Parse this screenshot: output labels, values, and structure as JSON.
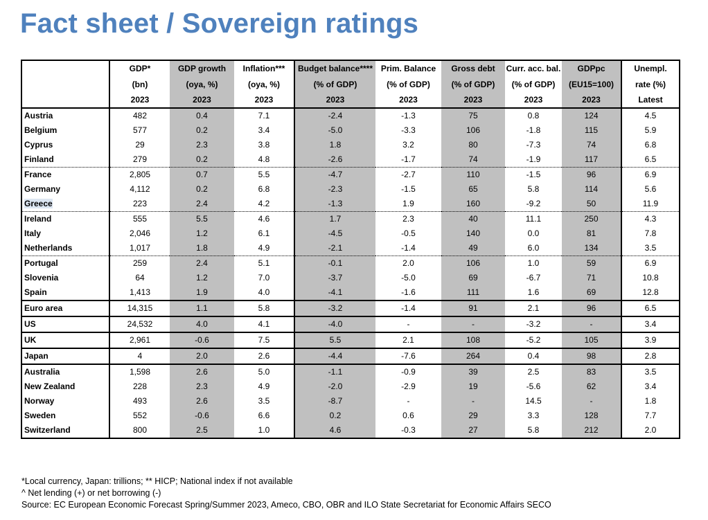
{
  "title": "Fact sheet / Sovereign ratings",
  "header": {
    "row1": [
      "GDP*",
      "GDP growth",
      "Inflation***",
      "Budget balance****",
      "Prim. Balance",
      "Gross debt",
      "Curr. acc. bal.",
      "GDPpc",
      "Unempl."
    ],
    "row2": [
      "(bn)",
      "(oya, %)",
      "(oya, %)",
      "(% of GDP)",
      "(% of GDP)",
      "(% of GDP)",
      "(% of GDP)",
      "(EU15=100)",
      "rate (%)"
    ],
    "row3": [
      "2023",
      "2023",
      "2023",
      "2023",
      "2023",
      "2023",
      "2023",
      "2023",
      "Latest"
    ]
  },
  "rows": [
    {
      "name": "Austria",
      "values": [
        "482",
        "0.4",
        "7.1",
        "-2.4",
        "-1.3",
        "75",
        "0.8",
        "124",
        "4.5"
      ]
    },
    {
      "name": "Belgium",
      "values": [
        "577",
        "0.2",
        "3.4",
        "-5.0",
        "-3.3",
        "106",
        "-1.8",
        "115",
        "5.9"
      ]
    },
    {
      "name": "Cyprus",
      "values": [
        "29",
        "2.3",
        "3.8",
        "1.8",
        "3.2",
        "80",
        "-7.3",
        "74",
        "6.8"
      ]
    },
    {
      "name": "Finland",
      "values": [
        "279",
        "0.2",
        "4.8",
        "-2.6",
        "-1.7",
        "74",
        "-1.9",
        "117",
        "6.5"
      ]
    },
    {
      "name": "France",
      "values": [
        "2,805",
        "0.7",
        "5.5",
        "-4.7",
        "-2.7",
        "110",
        "-1.5",
        "96",
        "6.9"
      ]
    },
    {
      "name": "Germany",
      "values": [
        "4,112",
        "0.2",
        "6.8",
        "-2.3",
        "-1.5",
        "65",
        "5.8",
        "114",
        "5.6"
      ]
    },
    {
      "name": "Greece",
      "values": [
        "223",
        "2.4",
        "4.2",
        "-1.3",
        "1.9",
        "160",
        "-9.2",
        "50",
        "11.9"
      ]
    },
    {
      "name": "Ireland",
      "values": [
        "555",
        "5.5",
        "4.6",
        "1.7",
        "2.3",
        "40",
        "11.1",
        "250",
        "4.3"
      ]
    },
    {
      "name": "Italy",
      "values": [
        "2,046",
        "1.2",
        "6.1",
        "-4.5",
        "-0.5",
        "140",
        "0.0",
        "81",
        "7.8"
      ]
    },
    {
      "name": "Netherlands",
      "values": [
        "1,017",
        "1.8",
        "4.9",
        "-2.1",
        "-1.4",
        "49",
        "6.0",
        "134",
        "3.5"
      ]
    },
    {
      "name": "Portugal",
      "values": [
        "259",
        "2.4",
        "5.1",
        "-0.1",
        "2.0",
        "106",
        "1.0",
        "59",
        "6.9"
      ]
    },
    {
      "name": "Slovenia",
      "values": [
        "64",
        "1.2",
        "7.0",
        "-3.7",
        "-5.0",
        "69",
        "-6.7",
        "71",
        "10.8"
      ]
    },
    {
      "name": "Spain",
      "values": [
        "1,413",
        "1.9",
        "4.0",
        "-4.1",
        "-1.6",
        "111",
        "1.6",
        "69",
        "12.8"
      ]
    },
    {
      "name": "Euro area",
      "values": [
        "14,315",
        "1.1",
        "5.8",
        "-3.2",
        "-1.4",
        "91",
        "2.1",
        "96",
        "6.5"
      ]
    },
    {
      "name": "US",
      "values": [
        "24,532",
        "4.0",
        "4.1",
        "-4.0",
        "-",
        "-",
        "-3.2",
        "-",
        "3.4"
      ]
    },
    {
      "name": "UK",
      "values": [
        "2,961",
        "-0.6",
        "7.5",
        "5.5",
        "2.1",
        "108",
        "-5.2",
        "105",
        "3.9"
      ]
    },
    {
      "name": "Japan",
      "values": [
        "4",
        "2.0",
        "2.6",
        "-4.4",
        "-7.6",
        "264",
        "0.4",
        "98",
        "2.8"
      ]
    },
    {
      "name": "Australia",
      "values": [
        "1,598",
        "2.6",
        "5.0",
        "-1.1",
        "-0.9",
        "39",
        "2.5",
        "83",
        "3.5"
      ]
    },
    {
      "name": "New Zealand",
      "values": [
        "228",
        "2.3",
        "4.9",
        "-2.0",
        "-2.9",
        "19",
        "-5.6",
        "62",
        "3.4"
      ]
    },
    {
      "name": "Norway",
      "values": [
        "493",
        "2.6",
        "3.5",
        "-8.7",
        "-",
        "-",
        "14.5",
        "-",
        "1.8"
      ]
    },
    {
      "name": "Sweden",
      "values": [
        "552",
        "-0.6",
        "6.6",
        "0.2",
        "0.6",
        "29",
        "3.3",
        "128",
        "7.7"
      ]
    },
    {
      "name": "Switzerland",
      "values": [
        "800",
        "2.5",
        "1.0",
        "4.6",
        "-0.3",
        "27",
        "5.8",
        "212",
        "2.0"
      ]
    }
  ],
  "notes": [
    "*Local currency, Japan: trillions; ** HICP; National index if not available",
    "^ Net lending (+) or net borrowing (-)",
    "Source: EC European Economic Forecast Spring/Summer 2023, Ameco, CBO, OBR and ILO State Secretariat for Economic Affairs SECO"
  ],
  "colors": {
    "title": "#4f81bd",
    "shaded_column": "#c0c0c0",
    "selection_highlight": "#dce6f2"
  }
}
